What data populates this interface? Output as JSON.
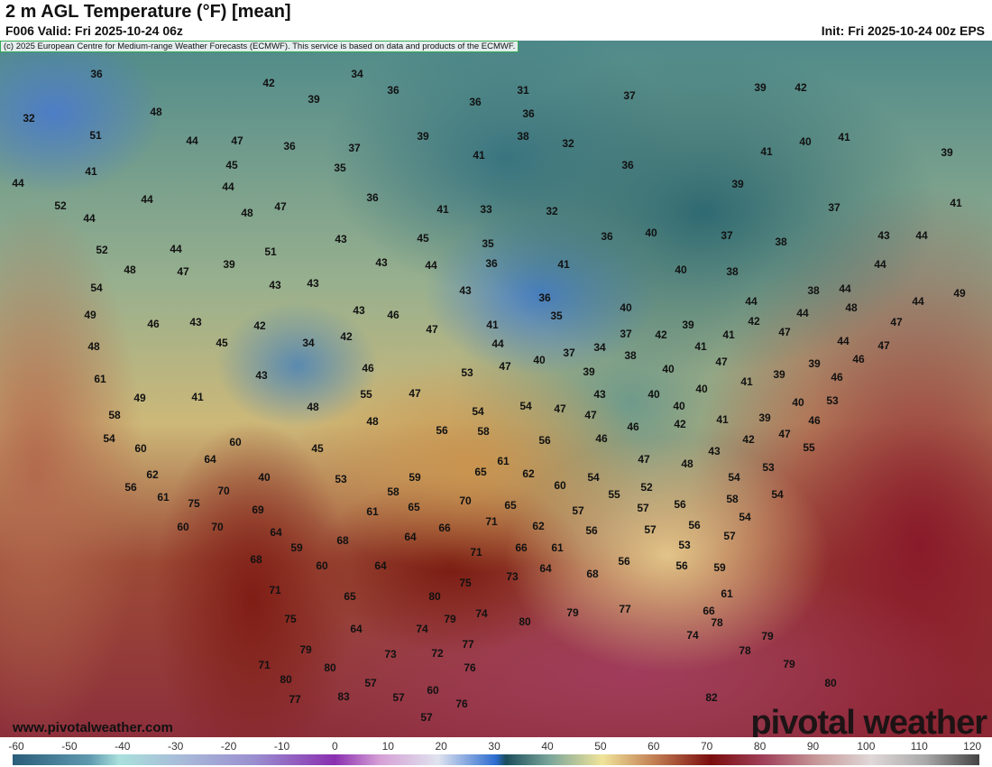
{
  "header": {
    "title": "2 m AGL Temperature (°F) [mean]",
    "valid": "F006 Valid: Fri 2025-10-24 06z",
    "init": "Init: Fri 2025-10-24 00z EPS"
  },
  "map": {
    "copyright": "(c) 2025 European Centre for Medium-range Weather Forecasts (ECMWF). This service is based on data and products of the ECMWF.",
    "website": "www.pivotalweather.com",
    "brand": "pivotal weather",
    "temperatures": [
      36,
      34,
      42,
      36,
      31,
      37,
      39,
      42,
      32,
      48,
      39,
      36,
      36,
      51,
      44,
      47,
      36,
      37,
      39,
      38,
      32,
      40,
      41,
      41,
      39,
      41,
      45,
      35,
      41,
      36,
      44,
      44,
      39,
      44,
      36,
      52,
      48,
      47,
      41,
      33,
      32,
      37,
      41,
      44,
      35,
      36,
      40,
      37,
      38,
      43,
      44,
      43,
      45,
      52,
      44,
      51,
      43,
      44,
      36,
      41,
      44,
      48,
      47,
      39,
      40,
      38,
      38,
      44,
      54,
      43,
      43,
      43,
      36,
      44,
      44,
      49,
      49,
      46,
      43,
      42,
      43,
      46,
      35,
      40,
      42,
      44,
      48,
      47,
      48,
      45,
      34,
      42,
      47,
      41,
      44,
      37,
      42,
      39,
      41,
      41,
      47,
      44,
      47,
      61,
      43,
      46,
      53,
      47,
      40,
      37,
      34,
      38,
      40,
      47,
      39,
      39,
      46,
      46,
      49,
      41,
      55,
      47,
      39,
      43,
      40,
      40,
      41,
      53,
      58,
      48,
      48,
      54,
      54,
      47,
      40,
      47,
      46,
      42,
      41,
      39,
      40,
      46,
      54,
      56,
      58,
      56,
      46,
      47,
      42,
      55,
      60,
      60,
      45,
      43,
      61,
      47,
      48,
      62,
      64,
      40,
      53,
      59,
      65,
      62,
      54,
      54,
      53,
      56,
      70,
      58,
      60,
      55,
      52,
      56,
      58,
      54,
      61,
      75,
      69,
      61,
      65,
      70,
      65,
      57,
      57,
      56,
      54,
      60,
      70,
      64,
      66,
      71,
      62,
      57,
      56,
      53,
      68,
      59,
      64,
      71,
      66,
      61,
      57,
      68,
      60,
      64,
      73,
      64,
      68,
      56,
      56,
      59,
      71,
      75,
      80,
      77,
      79,
      61,
      65,
      75,
      79,
      74,
      80,
      66,
      78,
      64,
      74,
      77,
      74,
      79,
      78,
      79,
      73,
      72,
      71,
      76,
      80,
      79,
      80,
      57,
      60,
      76,
      80,
      83,
      57,
      77,
      82,
      57
    ]
  },
  "colorbar": {
    "ticks": [
      "-60",
      "-50",
      "-40",
      "-30",
      "-20",
      "-10",
      "0",
      "10",
      "20",
      "30",
      "40",
      "50",
      "60",
      "70",
      "80",
      "90",
      "100",
      "110",
      "120"
    ]
  }
}
